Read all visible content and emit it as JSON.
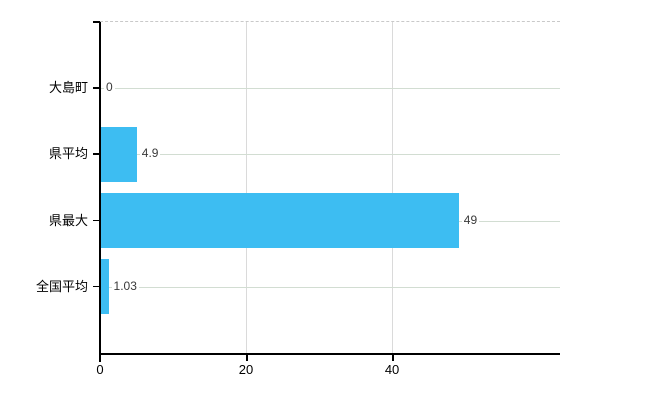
{
  "chart_data": {
    "type": "bar",
    "orientation": "horizontal",
    "title": "",
    "categories": [
      "大島町",
      "県平均",
      "県最大",
      "全国平均"
    ],
    "values": [
      0,
      4.9,
      49,
      1.03
    ],
    "value_labels": [
      "0",
      "4.9",
      "49",
      "1.03"
    ],
    "x_ticks": [
      0,
      20,
      40
    ],
    "x_tick_labels": [
      "0",
      "20",
      "40"
    ],
    "xlim": [
      0,
      63
    ],
    "grid": true,
    "legend": false,
    "colors": {
      "bar": "#3DBDF2",
      "axis": "#000000",
      "h_gridline": "#d2ddd2",
      "v_gridline": "#dadada",
      "top_border": "#c9c9c9",
      "category_label": "#000000",
      "value_label": "#3a3a3a",
      "background": "#ffffff"
    }
  }
}
